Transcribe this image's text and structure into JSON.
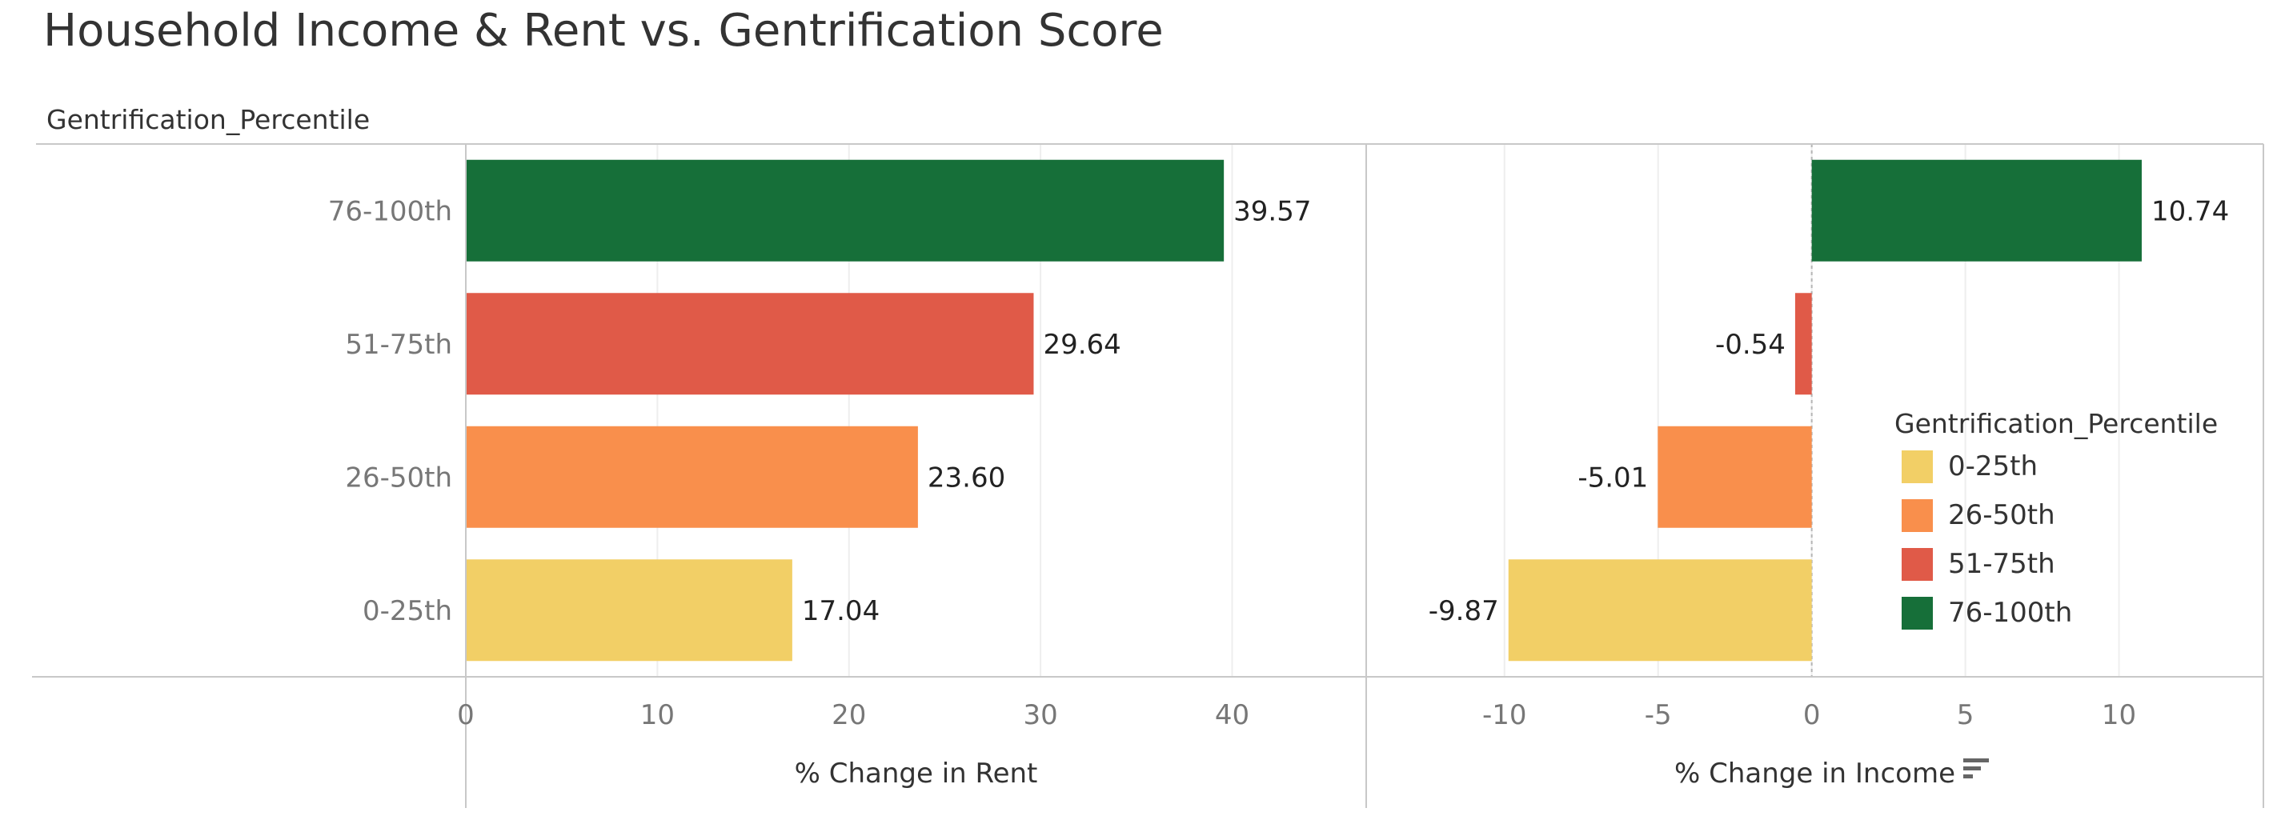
{
  "title": "Household Income & Rent vs. Gentrification Score",
  "row_header": "Gentrification_Percentile",
  "legend": {
    "title": "Gentrification_Percentile",
    "items": [
      {
        "label": "0-25th",
        "color": "#f2cf66"
      },
      {
        "label": "26-50th",
        "color": "#f98f4c"
      },
      {
        "label": "51-75th",
        "color": "#e05a48"
      },
      {
        "label": "76-100th",
        "color": "#166f39"
      }
    ]
  },
  "sort_icon": "sort-icon",
  "chart_data": [
    {
      "type": "bar",
      "orientation": "horizontal",
      "categories": [
        "76-100th",
        "51-75th",
        "26-50th",
        "0-25th"
      ],
      "values": [
        39.57,
        29.64,
        23.6,
        17.04
      ],
      "value_labels": [
        "39.57",
        "29.64",
        "23.60",
        "17.04"
      ],
      "colors": [
        "#166f39",
        "#e05a48",
        "#f98f4c",
        "#f2cf66"
      ],
      "xlabel": "% Change in Rent",
      "xlim": [
        0,
        47
      ],
      "ticks": [
        0,
        10,
        20,
        30,
        40
      ],
      "grid": true
    },
    {
      "type": "bar",
      "orientation": "horizontal",
      "categories": [
        "76-100th",
        "51-75th",
        "26-50th",
        "0-25th"
      ],
      "values": [
        10.74,
        -0.54,
        -5.01,
        -9.87
      ],
      "value_labels": [
        "10.74",
        "-0.54",
        "-5.01",
        "-9.87"
      ],
      "colors": [
        "#166f39",
        "#e05a48",
        "#f98f4c",
        "#f2cf66"
      ],
      "xlabel": "% Change in Income",
      "xlim": [
        -14.5,
        14.7
      ],
      "ticks": [
        -10,
        -5,
        0,
        5,
        10
      ],
      "grid": true,
      "zero_line": "dashed"
    }
  ]
}
